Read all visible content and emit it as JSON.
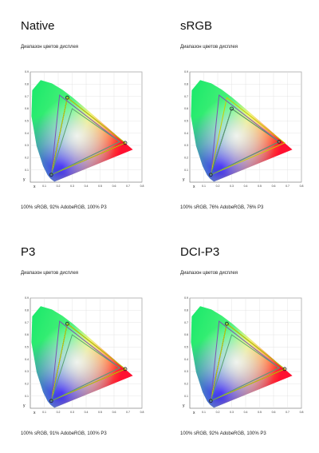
{
  "chart_data": [
    {
      "type": "scatter",
      "title": "Native",
      "subtitle": "Диапазон цветов дисплея",
      "coverage_text": "100% sRGB, 92% AdobeRGB, 100% P3",
      "xlabel": "x",
      "ylabel": "y",
      "xlim": [
        0,
        0.8
      ],
      "ylim": [
        0,
        0.9
      ],
      "x_ticks": [
        "0.1",
        "0.2",
        "0.3",
        "0.4",
        "0.5",
        "0.6",
        "0.7",
        "0.8"
      ],
      "y_ticks": [
        "0.1",
        "0.2",
        "0.3",
        "0.4",
        "0.5",
        "0.6",
        "0.7",
        "0.8",
        "0.9"
      ],
      "series": [
        {
          "name": "",
          "color": "#222222",
          "points": [
            [
              0.68,
              0.32
            ],
            [
              0.265,
              0.69
            ],
            [
              0.15,
              0.06
            ]
          ]
        },
        {
          "name": "",
          "color": "#c8d000",
          "points": [
            [
              0.68,
              0.32
            ],
            [
              0.265,
              0.69
            ],
            [
              0.15,
              0.06
            ]
          ]
        },
        {
          "name": "",
          "color": "#7a55b0",
          "points": [
            [
              0.64,
              0.33
            ],
            [
              0.21,
              0.71
            ],
            [
              0.15,
              0.06
            ]
          ]
        },
        {
          "name": "",
          "color": "#5aa070",
          "points": [
            [
              0.64,
              0.33
            ],
            [
              0.3,
              0.6
            ],
            [
              0.15,
              0.06
            ]
          ]
        }
      ]
    },
    {
      "type": "scatter",
      "title": "sRGB",
      "subtitle": "Диапазон цветов дисплея",
      "coverage_text": "100% sRGB, 76% AdobeRGB, 76% P3",
      "xlabel": "x",
      "ylabel": "y",
      "xlim": [
        0,
        0.8
      ],
      "ylim": [
        0,
        0.9
      ],
      "x_ticks": [
        "0.1",
        "0.2",
        "0.3",
        "0.4",
        "0.5",
        "0.6",
        "0.7",
        "0.8"
      ],
      "y_ticks": [
        "0.1",
        "0.2",
        "0.3",
        "0.4",
        "0.5",
        "0.6",
        "0.7",
        "0.8",
        "0.9"
      ],
      "series": [
        {
          "name": "",
          "color": "#222222",
          "points": [
            [
              0.64,
              0.33
            ],
            [
              0.3,
              0.6
            ],
            [
              0.15,
              0.06
            ]
          ]
        },
        {
          "name": "",
          "color": "#c8d000",
          "points": [
            [
              0.68,
              0.32
            ],
            [
              0.265,
              0.69
            ],
            [
              0.15,
              0.06
            ]
          ]
        },
        {
          "name": "",
          "color": "#7a55b0",
          "points": [
            [
              0.64,
              0.33
            ],
            [
              0.21,
              0.71
            ],
            [
              0.15,
              0.06
            ]
          ]
        },
        {
          "name": "",
          "color": "#5aa070",
          "points": [
            [
              0.64,
              0.33
            ],
            [
              0.3,
              0.6
            ],
            [
              0.15,
              0.06
            ]
          ]
        }
      ]
    },
    {
      "type": "scatter",
      "title": "P3",
      "subtitle": "Диапазон цветов дисплея",
      "coverage_text": "100% sRGB, 91% AdobeRGB, 100% P3",
      "xlabel": "x",
      "ylabel": "y",
      "xlim": [
        0,
        0.8
      ],
      "ylim": [
        0,
        0.9
      ],
      "x_ticks": [
        "0.1",
        "0.2",
        "0.3",
        "0.4",
        "0.5",
        "0.6",
        "0.7",
        "0.8"
      ],
      "y_ticks": [
        "0.1",
        "0.2",
        "0.3",
        "0.4",
        "0.5",
        "0.6",
        "0.7",
        "0.8",
        "0.9"
      ],
      "series": [
        {
          "name": "",
          "color": "#222222",
          "points": [
            [
              0.68,
              0.32
            ],
            [
              0.265,
              0.69
            ],
            [
              0.15,
              0.06
            ]
          ]
        },
        {
          "name": "",
          "color": "#c8d000",
          "points": [
            [
              0.68,
              0.32
            ],
            [
              0.265,
              0.69
            ],
            [
              0.15,
              0.06
            ]
          ]
        },
        {
          "name": "",
          "color": "#7a55b0",
          "points": [
            [
              0.64,
              0.33
            ],
            [
              0.21,
              0.71
            ],
            [
              0.15,
              0.06
            ]
          ]
        },
        {
          "name": "",
          "color": "#5aa070",
          "points": [
            [
              0.64,
              0.33
            ],
            [
              0.3,
              0.6
            ],
            [
              0.15,
              0.06
            ]
          ]
        }
      ]
    },
    {
      "type": "scatter",
      "title": "DCI-P3",
      "subtitle": "Диапазон цветов дисплея",
      "coverage_text": "100% sRGB, 92% AdobeRGB, 100% P3",
      "xlabel": "x",
      "ylabel": "y",
      "xlim": [
        0,
        0.8
      ],
      "ylim": [
        0,
        0.9
      ],
      "x_ticks": [
        "0.1",
        "0.2",
        "0.3",
        "0.4",
        "0.5",
        "0.6",
        "0.7",
        "0.8"
      ],
      "y_ticks": [
        "0.1",
        "0.2",
        "0.3",
        "0.4",
        "0.5",
        "0.6",
        "0.7",
        "0.8",
        "0.9"
      ],
      "series": [
        {
          "name": "",
          "color": "#222222",
          "points": [
            [
              0.68,
              0.32
            ],
            [
              0.265,
              0.69
            ],
            [
              0.15,
              0.06
            ]
          ]
        },
        {
          "name": "",
          "color": "#c8d000",
          "points": [
            [
              0.68,
              0.32
            ],
            [
              0.265,
              0.69
            ],
            [
              0.15,
              0.06
            ]
          ]
        },
        {
          "name": "",
          "color": "#7a55b0",
          "points": [
            [
              0.64,
              0.33
            ],
            [
              0.21,
              0.71
            ],
            [
              0.15,
              0.06
            ]
          ]
        },
        {
          "name": "",
          "color": "#5aa070",
          "points": [
            [
              0.64,
              0.33
            ],
            [
              0.3,
              0.6
            ],
            [
              0.15,
              0.06
            ]
          ]
        }
      ]
    }
  ]
}
